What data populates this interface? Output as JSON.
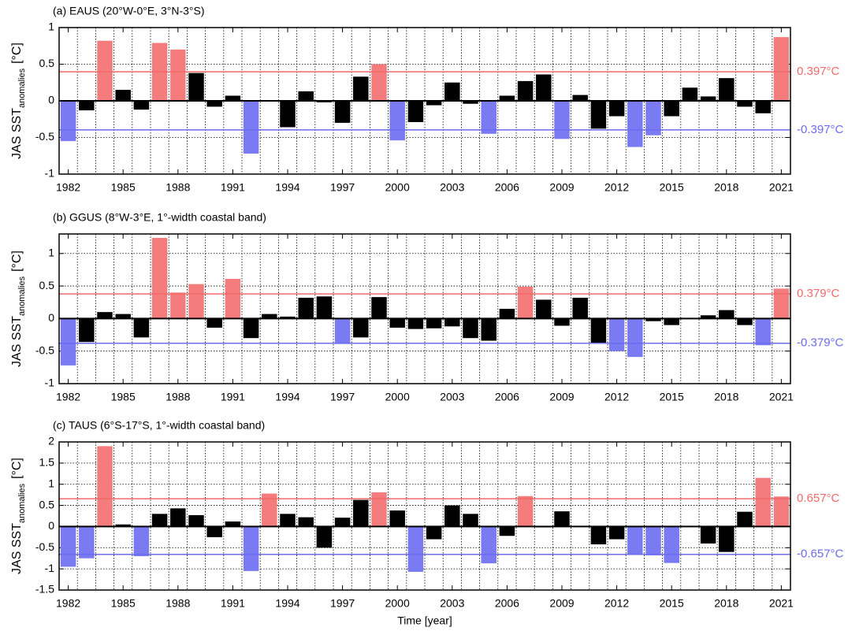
{
  "chart_data": [
    {
      "type": "bar",
      "title": "(a) EAUS (20°W-0°E, 3°N-3°S)",
      "ylabel": "JAS SST",
      "ylabel_sub": "anomalies",
      "ylabel_unit": "[°C]",
      "x": [
        1982,
        1983,
        1984,
        1985,
        1986,
        1987,
        1988,
        1989,
        1990,
        1991,
        1992,
        1993,
        1994,
        1995,
        1996,
        1997,
        1998,
        1999,
        2000,
        2001,
        2002,
        2003,
        2004,
        2005,
        2006,
        2007,
        2008,
        2009,
        2010,
        2011,
        2012,
        2013,
        2014,
        2015,
        2016,
        2017,
        2018,
        2019,
        2020,
        2021
      ],
      "values": [
        -0.55,
        -0.13,
        0.82,
        0.15,
        -0.12,
        0.79,
        0.7,
        0.38,
        -0.08,
        0.07,
        -0.72,
        0.01,
        -0.36,
        0.13,
        -0.02,
        -0.3,
        0.33,
        0.5,
        -0.54,
        -0.29,
        -0.06,
        0.25,
        -0.04,
        -0.45,
        0.07,
        0.27,
        0.36,
        -0.52,
        0.08,
        -0.38,
        -0.21,
        -0.63,
        -0.47,
        -0.21,
        0.18,
        0.06,
        0.31,
        -0.08,
        -0.17,
        0.87
      ],
      "colors": {
        "above": "#f47c7c",
        "below": "#7a7af2",
        "neutral": "#000000"
      },
      "hlines": [
        {
          "value": 0.397,
          "label": "0.397°C",
          "color": "#f26a6a"
        },
        {
          "value": -0.397,
          "label": "-0.397°C",
          "color": "#6c6cf0"
        }
      ],
      "xlim": [
        1981.5,
        2021.5
      ],
      "xticks": [
        1982,
        1985,
        1988,
        1991,
        1994,
        1997,
        2000,
        2003,
        2006,
        2009,
        2012,
        2015,
        2018,
        2021
      ],
      "ylim": [
        -1,
        1
      ],
      "yticks": [
        -1,
        -0.5,
        0,
        0.5,
        1
      ],
      "grid": true
    },
    {
      "type": "bar",
      "title": "(b) GGUS (8°W-3°E, 1°-width coastal band)",
      "ylabel": "JAS SST",
      "ylabel_sub": "anomalies",
      "ylabel_unit": "[°C]",
      "x": [
        1982,
        1983,
        1984,
        1985,
        1986,
        1987,
        1988,
        1989,
        1990,
        1991,
        1992,
        1993,
        1994,
        1995,
        1996,
        1997,
        1998,
        1999,
        2000,
        2001,
        2002,
        2003,
        2004,
        2005,
        2006,
        2007,
        2008,
        2009,
        2010,
        2011,
        2012,
        2013,
        2014,
        2015,
        2016,
        2017,
        2018,
        2019,
        2020,
        2021
      ],
      "values": [
        -0.72,
        -0.36,
        0.1,
        0.07,
        -0.29,
        1.24,
        0.4,
        0.53,
        -0.14,
        0.61,
        -0.3,
        0.07,
        0.03,
        0.32,
        0.34,
        -0.39,
        -0.29,
        0.33,
        -0.14,
        -0.16,
        -0.15,
        -0.12,
        -0.3,
        -0.34,
        0.15,
        0.49,
        0.29,
        -0.11,
        0.32,
        -0.37,
        -0.5,
        -0.59,
        -0.04,
        -0.1,
        0.0,
        0.05,
        0.13,
        -0.1,
        -0.41,
        0.46
      ],
      "colors": {
        "above": "#f47c7c",
        "below": "#7a7af2",
        "neutral": "#000000"
      },
      "hlines": [
        {
          "value": 0.379,
          "label": "0.379°C",
          "color": "#f26a6a"
        },
        {
          "value": -0.379,
          "label": "-0.379°C",
          "color": "#6c6cf0"
        }
      ],
      "xlim": [
        1981.5,
        2021.5
      ],
      "xticks": [
        1982,
        1985,
        1988,
        1991,
        1994,
        1997,
        2000,
        2003,
        2006,
        2009,
        2012,
        2015,
        2018,
        2021
      ],
      "ylim": [
        -1,
        1.3
      ],
      "yticks": [
        -1,
        -0.5,
        0,
        0.5,
        1
      ],
      "grid": true
    },
    {
      "type": "bar",
      "title": "(c) TAUS (6°S-17°S, 1°-width coastal band)",
      "ylabel": "JAS SST",
      "ylabel_sub": "anomalies",
      "ylabel_unit": "[°C]",
      "xlabel": "Time [year]",
      "x": [
        1982,
        1983,
        1984,
        1985,
        1986,
        1987,
        1988,
        1989,
        1990,
        1991,
        1992,
        1993,
        1994,
        1995,
        1996,
        1997,
        1998,
        1999,
        2000,
        2001,
        2002,
        2003,
        2004,
        2005,
        2006,
        2007,
        2008,
        2009,
        2010,
        2011,
        2012,
        2013,
        2014,
        2015,
        2016,
        2017,
        2018,
        2019,
        2020,
        2021
      ],
      "values": [
        -0.95,
        -0.75,
        1.9,
        0.05,
        -0.7,
        0.3,
        0.43,
        0.27,
        -0.25,
        0.12,
        -1.05,
        0.78,
        0.3,
        0.22,
        -0.5,
        0.21,
        0.63,
        0.81,
        0.38,
        -1.07,
        -0.3,
        0.5,
        0.3,
        -0.87,
        -0.22,
        0.72,
        -0.02,
        0.36,
        0.0,
        -0.42,
        -0.3,
        -0.67,
        -0.68,
        -0.86,
        0.0,
        -0.4,
        -0.6,
        0.35,
        1.15,
        0.71
      ],
      "colors": {
        "above": "#f47c7c",
        "below": "#7a7af2",
        "neutral": "#000000"
      },
      "hlines": [
        {
          "value": 0.657,
          "label": "0.657°C",
          "color": "#f26a6a"
        },
        {
          "value": -0.657,
          "label": "-0.657°C",
          "color": "#6c6cf0"
        }
      ],
      "xlim": [
        1981.5,
        2021.5
      ],
      "xticks": [
        1982,
        1985,
        1988,
        1991,
        1994,
        1997,
        2000,
        2003,
        2006,
        2009,
        2012,
        2015,
        2018,
        2021
      ],
      "ylim": [
        -1.5,
        2
      ],
      "yticks": [
        -1.5,
        -1,
        -0.5,
        0,
        0.5,
        1,
        1.5,
        2
      ],
      "grid": true
    }
  ]
}
